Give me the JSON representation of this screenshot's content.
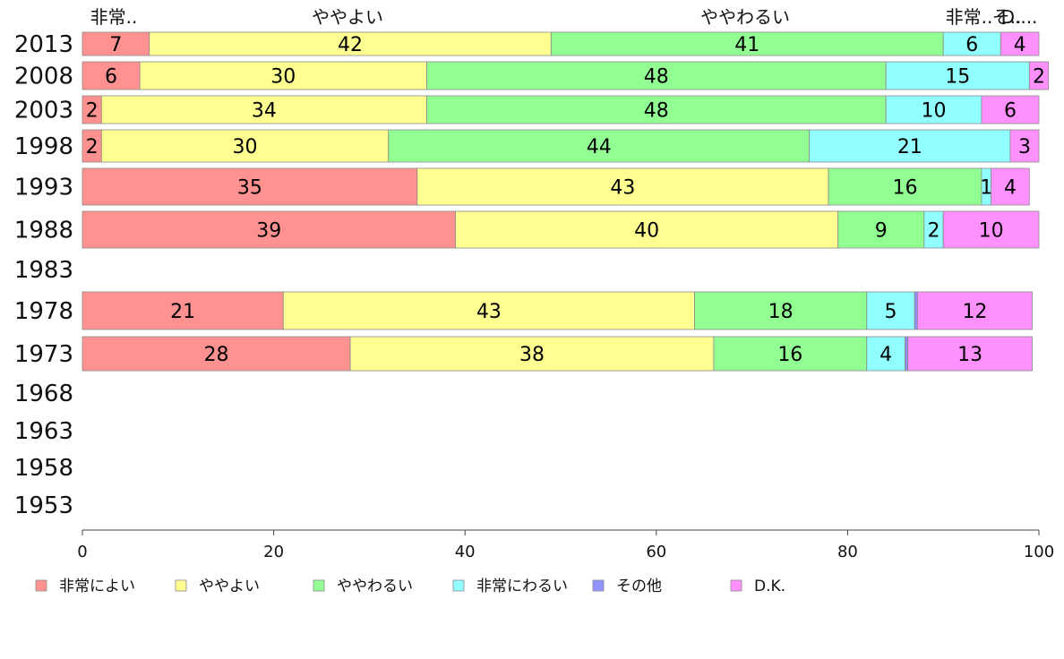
{
  "chart_data": {
    "type": "bar",
    "orientation": "horizontal",
    "stacked": true,
    "title": "",
    "xlabel": "",
    "ylabel": "",
    "xlim": [
      0,
      100
    ],
    "x_ticks": [
      "0",
      "20",
      "40",
      "60",
      "80",
      "100"
    ],
    "categories": [
      "2013",
      "2008",
      "2003",
      "1998",
      "1993",
      "1988",
      "1983",
      "1978",
      "1973",
      "1968",
      "1963",
      "1958",
      "1953"
    ],
    "series": [
      {
        "name": "非常によい",
        "color": "#ff9191",
        "values": [
          7,
          6,
          2,
          2,
          35,
          39,
          null,
          21,
          28,
          null,
          null,
          null,
          null
        ],
        "labels": [
          "7",
          "6",
          "2",
          "2",
          "35",
          "39",
          "",
          "21",
          "28",
          "",
          "",
          "",
          ""
        ]
      },
      {
        "name": "ややよい",
        "color": "#ffff91",
        "values": [
          42,
          30,
          34,
          30,
          43,
          40,
          null,
          43,
          38,
          null,
          null,
          null,
          null
        ],
        "labels": [
          "42",
          "30",
          "34",
          "30",
          "43",
          "40",
          "",
          "43",
          "38",
          "",
          "",
          "",
          ""
        ]
      },
      {
        "name": "ややわるい",
        "color": "#91ff91",
        "values": [
          41,
          48,
          48,
          44,
          16,
          9,
          null,
          18,
          16,
          null,
          null,
          null,
          null
        ],
        "labels": [
          "41",
          "48",
          "48",
          "44",
          "16",
          "9",
          "",
          "18",
          "16",
          "",
          "",
          "",
          ""
        ]
      },
      {
        "name": "非常にわるい",
        "color": "#91ffff",
        "values": [
          6,
          15,
          10,
          21,
          1,
          2,
          null,
          5,
          4,
          null,
          null,
          null,
          null
        ],
        "labels": [
          "6",
          "15",
          "10",
          "21",
          "1",
          "2",
          "",
          "5",
          "4",
          "",
          "",
          "",
          ""
        ]
      },
      {
        "name": "その他",
        "color": "#9191ff",
        "values": [
          0,
          0,
          0,
          0,
          0,
          0,
          null,
          0.3,
          0.3,
          null,
          null,
          null,
          null
        ],
        "labels": [
          "",
          "",
          "",
          "",
          "",
          "",
          "",
          "",
          "",
          "",
          "",
          "",
          ""
        ]
      },
      {
        "name": "D.K.",
        "color": "#ff91ff",
        "values": [
          4,
          2,
          6,
          3,
          4,
          10,
          null,
          12,
          13,
          null,
          null,
          null,
          null
        ],
        "labels": [
          "4",
          "2",
          "6",
          "3",
          "4",
          "10",
          "",
          "12",
          "13",
          "",
          "",
          "",
          ""
        ]
      }
    ],
    "top_labels": [
      "非常..",
      "ややよい",
      "ややわるい",
      "非常..",
      "そ..",
      "D...."
    ],
    "legend": {
      "position": "bottom"
    },
    "grid": false
  }
}
